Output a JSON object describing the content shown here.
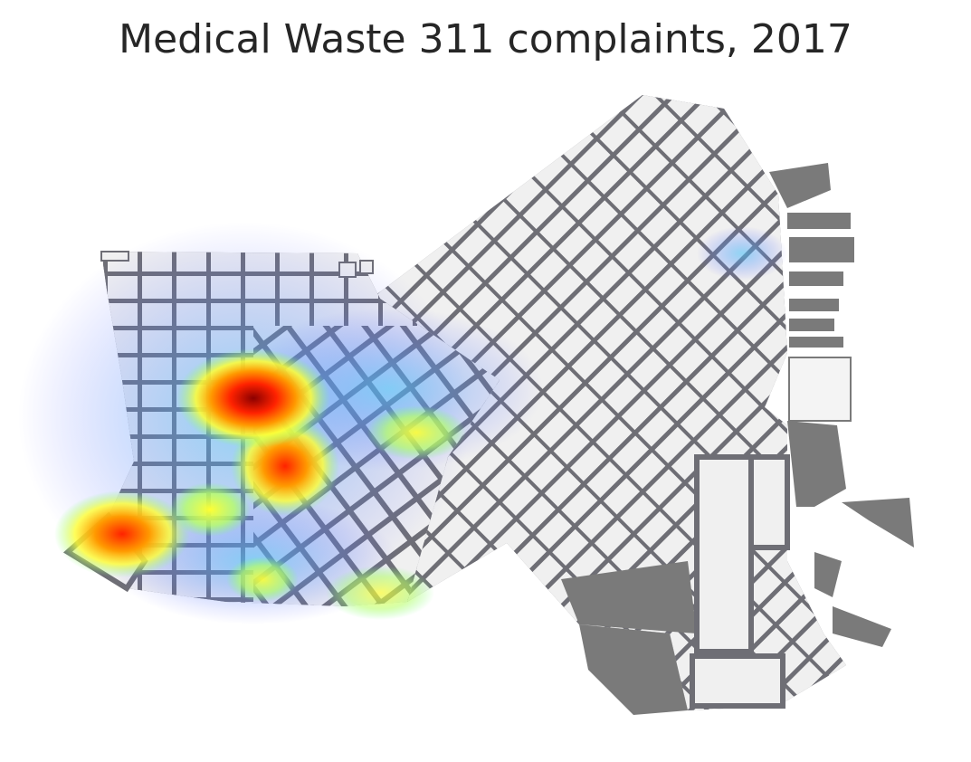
{
  "title": "Medical Waste 311 complaints, 2017",
  "map": {
    "type": "heatmap-over-street-map",
    "base_colors": {
      "street": "#6e6e75",
      "block": "#f0f0f0",
      "water_land": "#7a7a7a"
    },
    "heat_colormap": [
      "#5050ff",
      "#4fc3f7",
      "#7fff7f",
      "#ffff33",
      "#ff9900",
      "#ff2200",
      "#8b0000"
    ]
  },
  "chart_data": {
    "type": "heatmap",
    "title": "Medical Waste 311 complaints, 2017",
    "hotspots_relative_intensity": [
      {
        "area": "west-central",
        "intensity": 1.0
      },
      {
        "area": "southwest",
        "intensity": 0.8
      },
      {
        "area": "central",
        "intensity": 0.75
      }
    ]
  }
}
